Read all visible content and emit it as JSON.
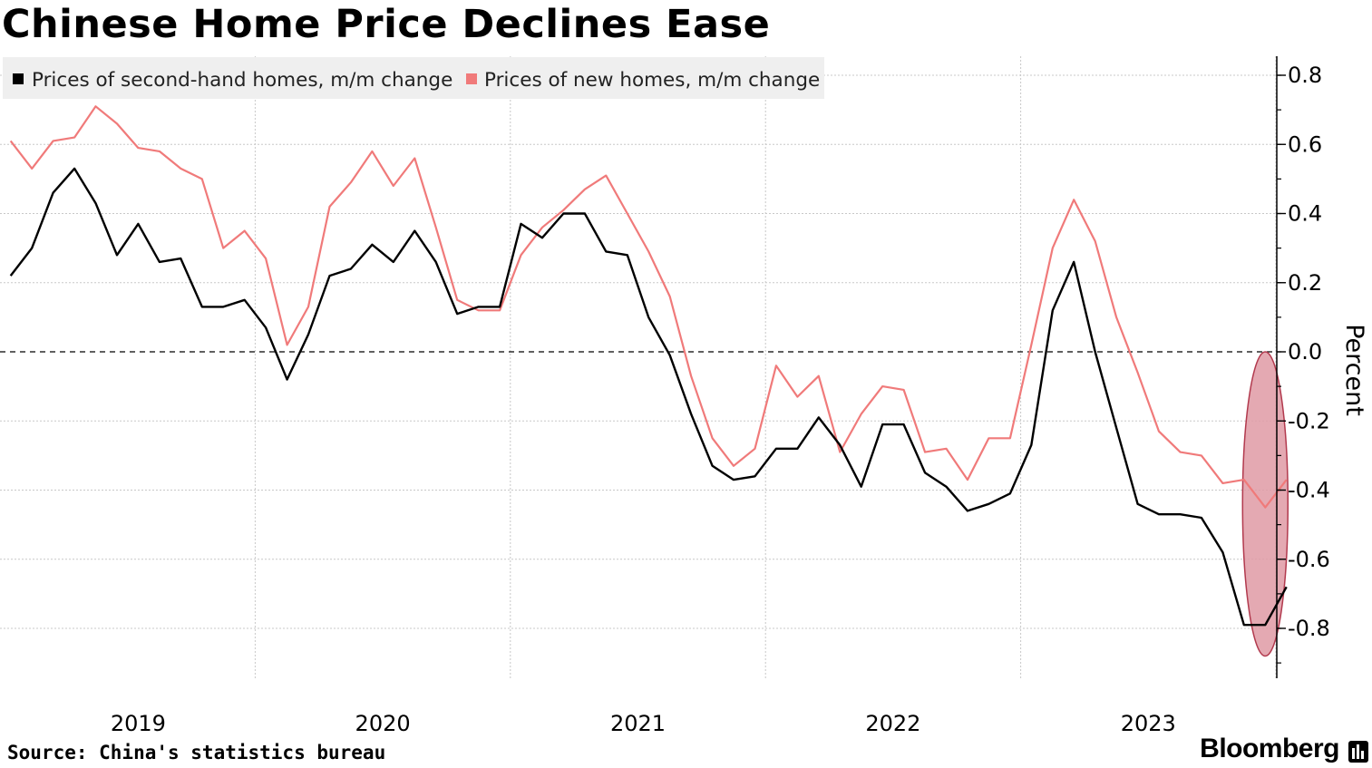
{
  "title": "Chinese Home Price Declines Ease",
  "source": "Source: China's statistics bureau",
  "brand": "Bloomberg",
  "colors": {
    "second_hand": "#000000",
    "new_homes": "#f07a7a",
    "highlight_fill": "#df9aa5",
    "highlight_stroke": "#b23a4e",
    "legend_bg": "#efefef"
  },
  "chart_data": {
    "type": "line",
    "title": "Chinese Home Price Declines Ease",
    "ylabel": "Percent",
    "ylim": [
      -0.93,
      0.85
    ],
    "yticks": [
      0.8,
      0.6,
      0.4,
      0.2,
      0.0,
      -0.2,
      -0.4,
      -0.6,
      -0.8
    ],
    "ytick_labels": [
      "0.8",
      "0.6",
      "0.4",
      "0.2",
      "0.0",
      "-0.2",
      "-0.4",
      "-0.6",
      "-0.8"
    ],
    "x_start": "2018-12",
    "x_range_months": [
      -0.5,
      59.5
    ],
    "year_labels": [
      {
        "label": "2019",
        "month_index": 6
      },
      {
        "label": "2020",
        "month_index": 17.5
      },
      {
        "label": "2021",
        "month_index": 29.5
      },
      {
        "label": "2022",
        "month_index": 41.5
      },
      {
        "label": "2023",
        "month_index": 53.5
      }
    ],
    "year_dividers": [
      11.5,
      23.5,
      35.5,
      47.5,
      59.5
    ],
    "zero_line": 0.0,
    "series": [
      {
        "name": "Prices of second-hand homes, m/m change",
        "key": "second_hand",
        "values": [
          0.22,
          0.3,
          0.46,
          0.53,
          0.43,
          0.28,
          0.37,
          0.26,
          0.27,
          0.13,
          0.13,
          0.15,
          0.07,
          -0.08,
          0.05,
          0.22,
          0.24,
          0.31,
          0.26,
          0.35,
          0.26,
          0.11,
          0.13,
          0.13,
          0.37,
          0.33,
          0.4,
          0.4,
          0.29,
          0.28,
          0.1,
          -0.01,
          -0.18,
          -0.33,
          -0.37,
          -0.36,
          -0.28,
          -0.28,
          -0.19,
          -0.27,
          -0.39,
          -0.21,
          -0.21,
          -0.35,
          -0.39,
          -0.46,
          -0.44,
          -0.41,
          -0.27,
          0.12,
          0.26,
          0.0,
          -0.22,
          -0.44,
          -0.47,
          -0.47,
          -0.48,
          -0.58,
          -0.79,
          -0.79,
          -0.68
        ]
      },
      {
        "name": "Prices of new homes, m/m change",
        "key": "new_homes",
        "values": [
          0.61,
          0.53,
          0.61,
          0.62,
          0.71,
          0.66,
          0.59,
          0.58,
          0.53,
          0.5,
          0.3,
          0.35,
          0.27,
          0.02,
          0.13,
          0.42,
          0.49,
          0.58,
          0.48,
          0.56,
          0.36,
          0.15,
          0.12,
          0.12,
          0.28,
          0.36,
          0.41,
          0.47,
          0.51,
          0.4,
          0.29,
          0.16,
          -0.07,
          -0.25,
          -0.33,
          -0.28,
          -0.04,
          -0.13,
          -0.07,
          -0.29,
          -0.18,
          -0.1,
          -0.11,
          -0.29,
          -0.28,
          -0.37,
          -0.25,
          -0.25,
          0.02,
          0.3,
          0.44,
          0.32,
          0.1,
          -0.06,
          -0.23,
          -0.29,
          -0.3,
          -0.38,
          -0.37,
          -0.45,
          -0.37
        ]
      }
    ],
    "legend": [
      {
        "label": "Prices of second-hand homes, m/m change",
        "key": "second_hand"
      },
      {
        "label": "Prices of new homes, m/m change",
        "key": "new_homes"
      }
    ],
    "legend_position": "top-left",
    "highlight": {
      "shape": "ellipse",
      "month_index": 59,
      "y_center": -0.44,
      "y_half_height": 0.44
    }
  }
}
